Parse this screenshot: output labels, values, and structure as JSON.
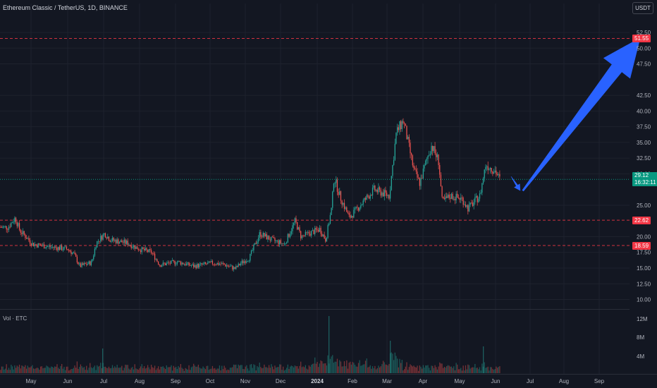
{
  "header": {
    "title": "Ethereum Classic / TetherUS, 1D, BINANCE",
    "currency": "USDT"
  },
  "volume_pane": {
    "label": "Vol · ETC",
    "ticks": [
      "12M",
      "8M",
      "4M"
    ]
  },
  "price_tags": {
    "top_resistance": "51.55",
    "current_price": "29.12",
    "countdown": "16:32:11",
    "support_1": "22.62",
    "support_2": "18.59"
  },
  "colors": {
    "background": "#131722",
    "up": "#26a69a",
    "down": "#ef5350",
    "level_line": "#f23645",
    "arrow": "#2962ff",
    "current_price": "#089981"
  },
  "chart_data": {
    "type": "candlestick",
    "symbol": "ETCUSDT",
    "timeframe": "1D",
    "exchange": "BINANCE",
    "y_ticks": [
      52.5,
      50.0,
      47.5,
      42.5,
      40.0,
      37.5,
      35.0,
      32.5,
      30.0,
      25.0,
      20.0,
      17.5,
      15.0,
      12.5,
      10.0
    ],
    "y_range": [
      8.6,
      54.3
    ],
    "x_labels": [
      "May",
      "Jun",
      "Jul",
      "Aug",
      "Sep",
      "Oct",
      "Nov",
      "Dec",
      "2024",
      "Feb",
      "Mar",
      "Apr",
      "May",
      "Jun",
      "Jul",
      "Aug",
      "Sep"
    ],
    "horizontal_levels": [
      51.55,
      22.62,
      18.59
    ],
    "current_price": 29.12,
    "path_points": [
      [
        "2023-04-10",
        21.5
      ],
      [
        "2023-04-16",
        23.0
      ],
      [
        "2023-04-20",
        21.0
      ],
      [
        "2023-05-01",
        18.8
      ],
      [
        "2023-05-15",
        18.4
      ],
      [
        "2023-05-31",
        18.0
      ],
      [
        "2023-06-05",
        17.2
      ],
      [
        "2023-06-10",
        15.3
      ],
      [
        "2023-06-20",
        15.9
      ],
      [
        "2023-06-24",
        19.0
      ],
      [
        "2023-07-01",
        20.5
      ],
      [
        "2023-07-06",
        19.5
      ],
      [
        "2023-07-20",
        19.0
      ],
      [
        "2023-07-31",
        18.0
      ],
      [
        "2023-08-10",
        17.5
      ],
      [
        "2023-08-17",
        15.5
      ],
      [
        "2023-09-01",
        16.0
      ],
      [
        "2023-09-15",
        15.3
      ],
      [
        "2023-10-01",
        15.8
      ],
      [
        "2023-10-10",
        15.6
      ],
      [
        "2023-10-20",
        14.9
      ],
      [
        "2023-10-25",
        15.8
      ],
      [
        "2023-11-01",
        16.6
      ],
      [
        "2023-11-10",
        20.5
      ],
      [
        "2023-11-20",
        19.5
      ],
      [
        "2023-12-01",
        18.8
      ],
      [
        "2023-12-10",
        22.5
      ],
      [
        "2023-12-15",
        20.0
      ],
      [
        "2023-12-31",
        21.2
      ],
      [
        "2024-01-05",
        19.5
      ],
      [
        "2024-01-10",
        24.5
      ],
      [
        "2024-01-12",
        29.5
      ],
      [
        "2024-01-17",
        26.5
      ],
      [
        "2024-01-25",
        23.0
      ],
      [
        "2024-02-01",
        24.5
      ],
      [
        "2024-02-15",
        27.5
      ],
      [
        "2024-02-28",
        26.5
      ],
      [
        "2024-03-05",
        36.5
      ],
      [
        "2024-03-11",
        38.5
      ],
      [
        "2024-03-20",
        30.5
      ],
      [
        "2024-03-25",
        28.5
      ],
      [
        "2024-04-01",
        33.0
      ],
      [
        "2024-04-04",
        34.5
      ],
      [
        "2024-04-10",
        32.0
      ],
      [
        "2024-04-13",
        25.5
      ],
      [
        "2024-04-20",
        26.5
      ],
      [
        "2024-04-30",
        26.0
      ],
      [
        "2024-05-05",
        24.5
      ],
      [
        "2024-05-15",
        26.5
      ],
      [
        "2024-05-20",
        31.5
      ],
      [
        "2024-05-28",
        30.5
      ],
      [
        "2024-06-01",
        29.1
      ]
    ],
    "annotations": [
      {
        "type": "arrow",
        "direction": "down",
        "from": [
          "2024-06-11",
          29.6
        ],
        "to": [
          "2024-06-19",
          27.3
        ]
      },
      {
        "type": "arrow",
        "direction": "up",
        "from": [
          "2024-06-21",
          27.3
        ],
        "to": [
          "2024-09-29",
          51.7
        ]
      }
    ]
  }
}
